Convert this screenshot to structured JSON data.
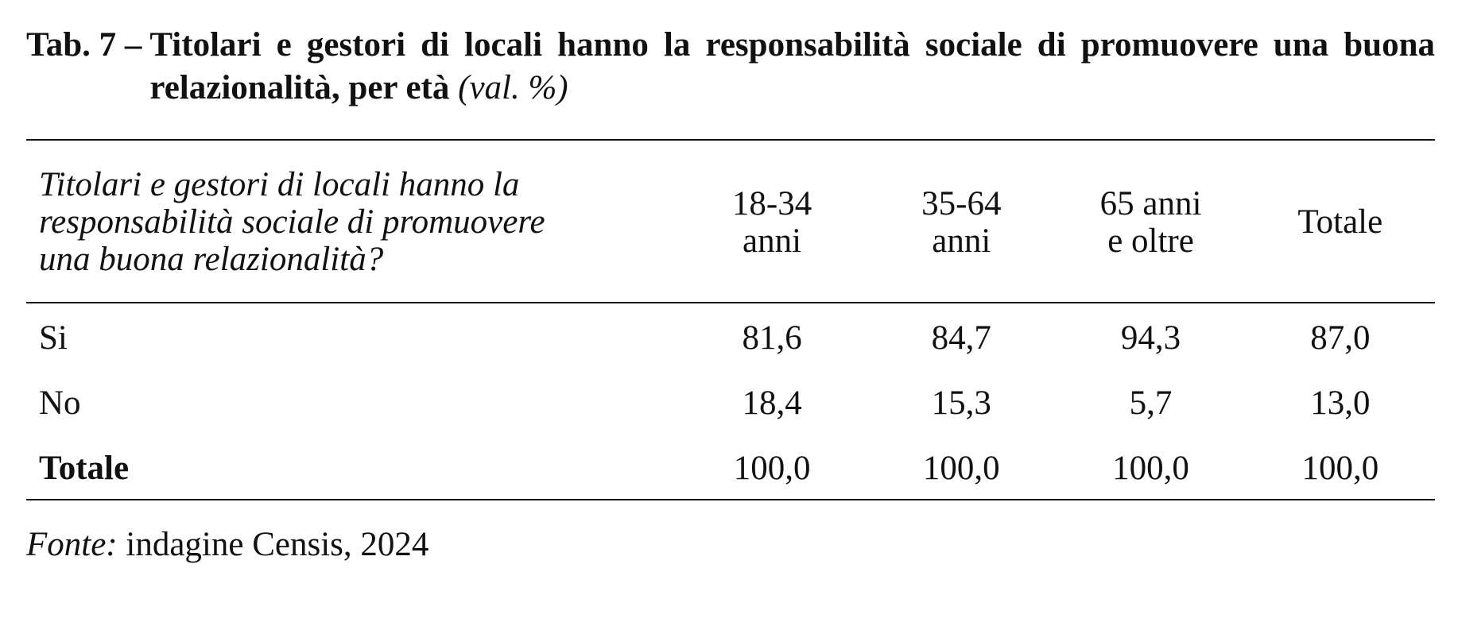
{
  "caption": {
    "number": "Tab. 7 –",
    "title": "Titolari e gestori di locali hanno la responsabilità sociale di promuovere una buona relazionalità, per età",
    "unit": "(val. %)"
  },
  "table": {
    "header": {
      "question_line1": "Titolari e gestori di locali hanno la",
      "question_line2": "responsabilità sociale di promuovere",
      "question_line3": "una buona relazionalità?",
      "columns": [
        {
          "line1": "18-34",
          "line2": "anni"
        },
        {
          "line1": "35-64",
          "line2": "anni"
        },
        {
          "line1": "65 anni",
          "line2": "e oltre"
        },
        {
          "line1": "Totale",
          "line2": ""
        }
      ]
    },
    "rows": [
      {
        "label": "Si",
        "values": [
          "81,6",
          "84,7",
          "94,3",
          "87,0"
        ]
      },
      {
        "label": "No",
        "values": [
          "18,4",
          "15,3",
          "5,7",
          "13,0"
        ]
      },
      {
        "label": "Totale",
        "values": [
          "100,0",
          "100,0",
          "100,0",
          "100,0"
        ]
      }
    ]
  },
  "source": {
    "label": "Fonte:",
    "text": "indagine Censis, 2024"
  }
}
